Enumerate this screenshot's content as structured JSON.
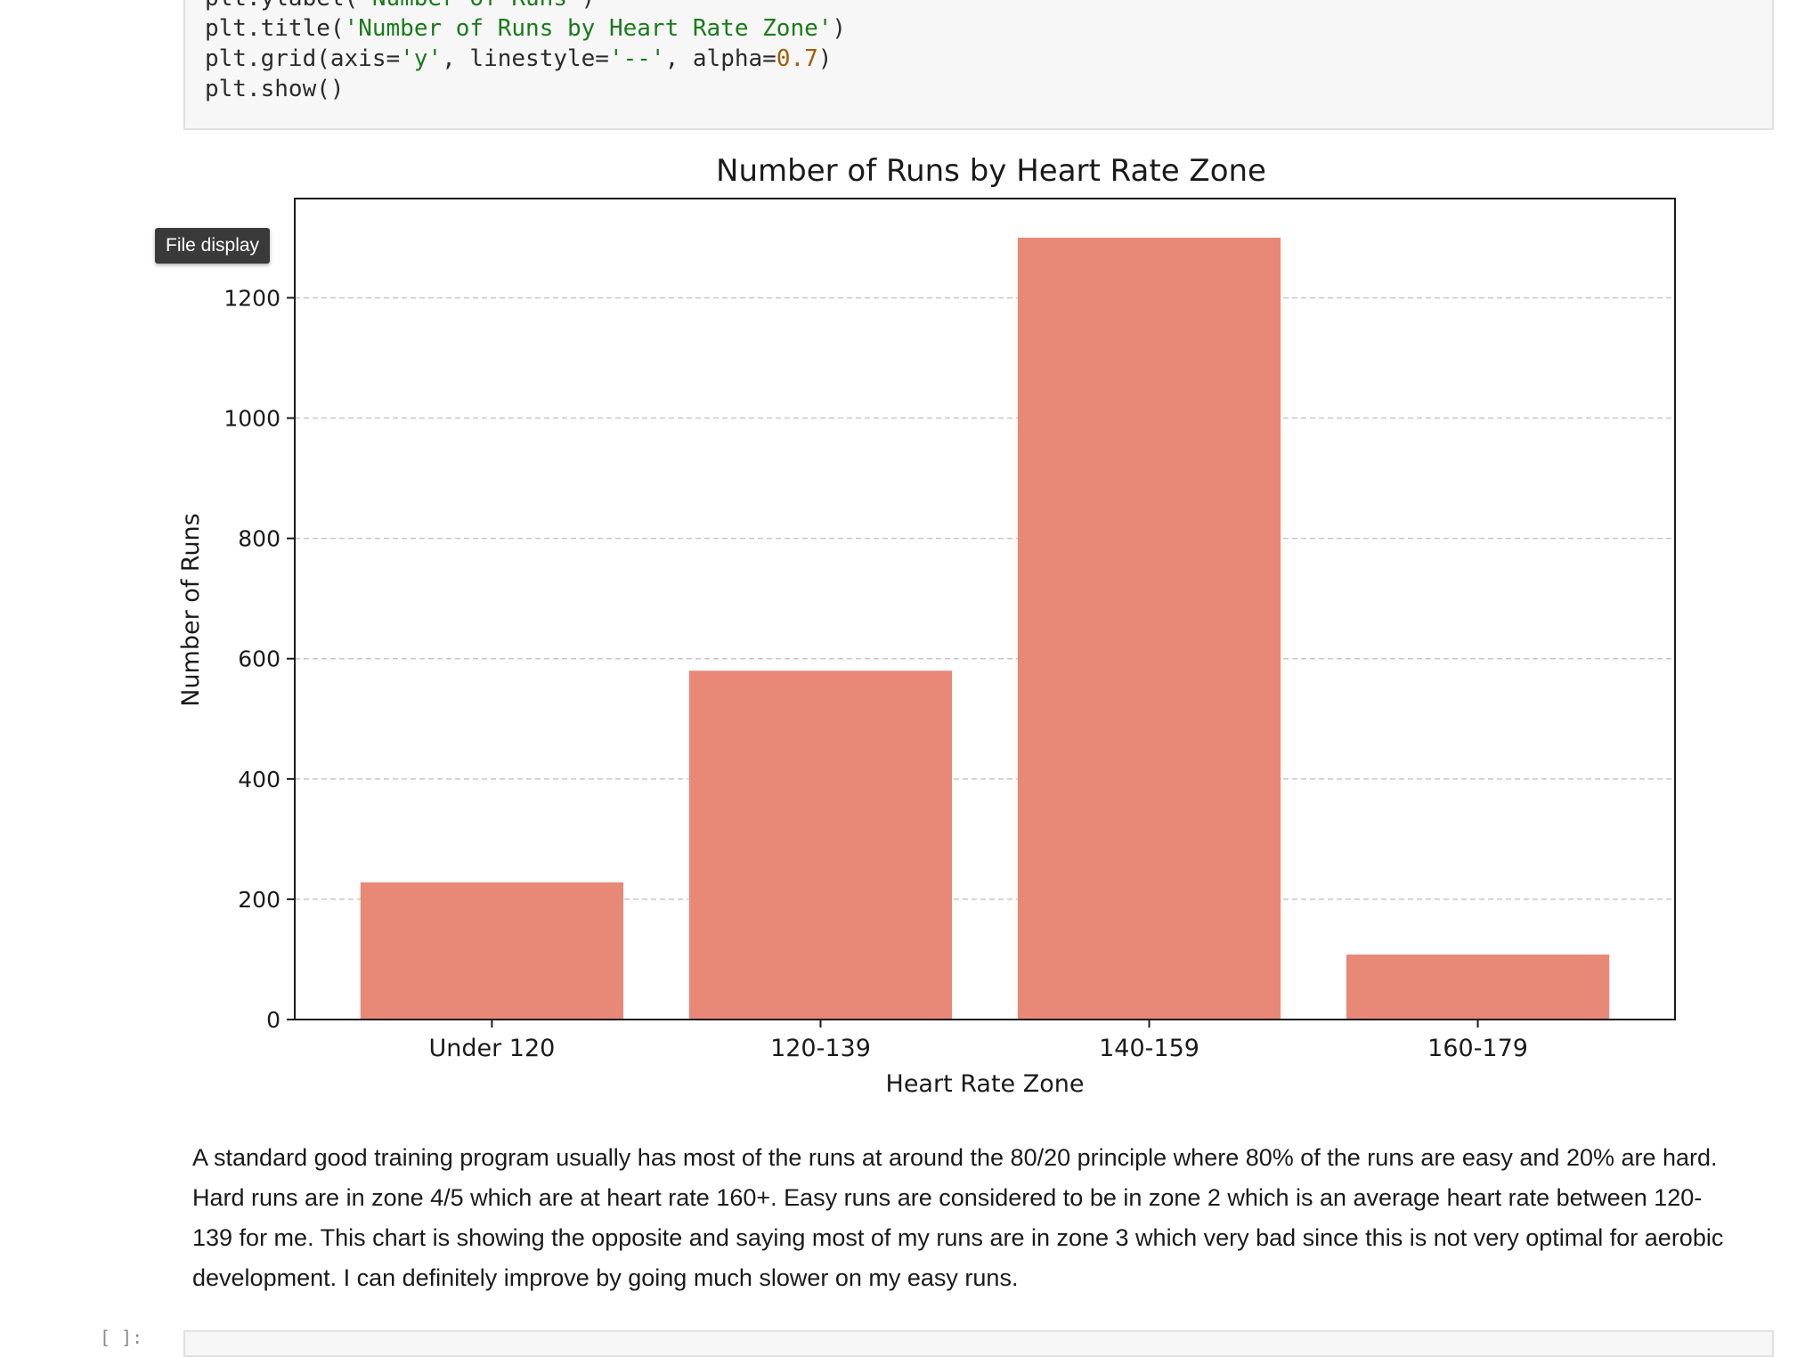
{
  "code_cell": {
    "lines": [
      [
        {
          "t": "plt.ylabel("
        },
        {
          "t": "'Number of Runs'",
          "c": "str"
        },
        {
          "t": ")"
        }
      ],
      [
        {
          "t": "plt.title("
        },
        {
          "t": "'Number of Runs by Heart Rate Zone'",
          "c": "str"
        },
        {
          "t": ")"
        }
      ],
      [
        {
          "t": "plt.grid(axis="
        },
        {
          "t": "'y'",
          "c": "str"
        },
        {
          "t": ", linestyle="
        },
        {
          "t": "'--'",
          "c": "str"
        },
        {
          "t": ", alpha="
        },
        {
          "t": "0.7",
          "c": "num"
        },
        {
          "t": ")"
        }
      ],
      [
        {
          "t": "plt.show()"
        }
      ]
    ]
  },
  "tooltip": {
    "label": "File display"
  },
  "chart_data": {
    "type": "bar",
    "title": "Number of Runs by Heart Rate Zone",
    "xlabel": "Heart Rate Zone",
    "ylabel": "Number of Runs",
    "categories": [
      "Under 120",
      "120-139",
      "140-159",
      "160-179"
    ],
    "values": [
      228,
      580,
      1300,
      108
    ],
    "ylim": [
      0,
      1365
    ],
    "yticks": [
      0,
      200,
      400,
      600,
      800,
      1000,
      1200
    ],
    "grid": "y-dashed",
    "bar_color": "#e88877"
  },
  "markdown": {
    "text": "A standard good training program usually has most of the runs at around the 80/20 principle where 80% of the runs are easy and 20% are hard. Hard runs are in zone 4/5 which are at heart rate 160+. Easy runs are considered to be in zone 2 which is an average heart rate between 120-139 for me. This chart is showing the opposite and saying most of my runs are in zone 3 which very bad since this is not very optimal for aerobic development. I can definitely improve by going much slower on my easy runs."
  },
  "next_cell": {
    "prompt": "[ ]:"
  }
}
